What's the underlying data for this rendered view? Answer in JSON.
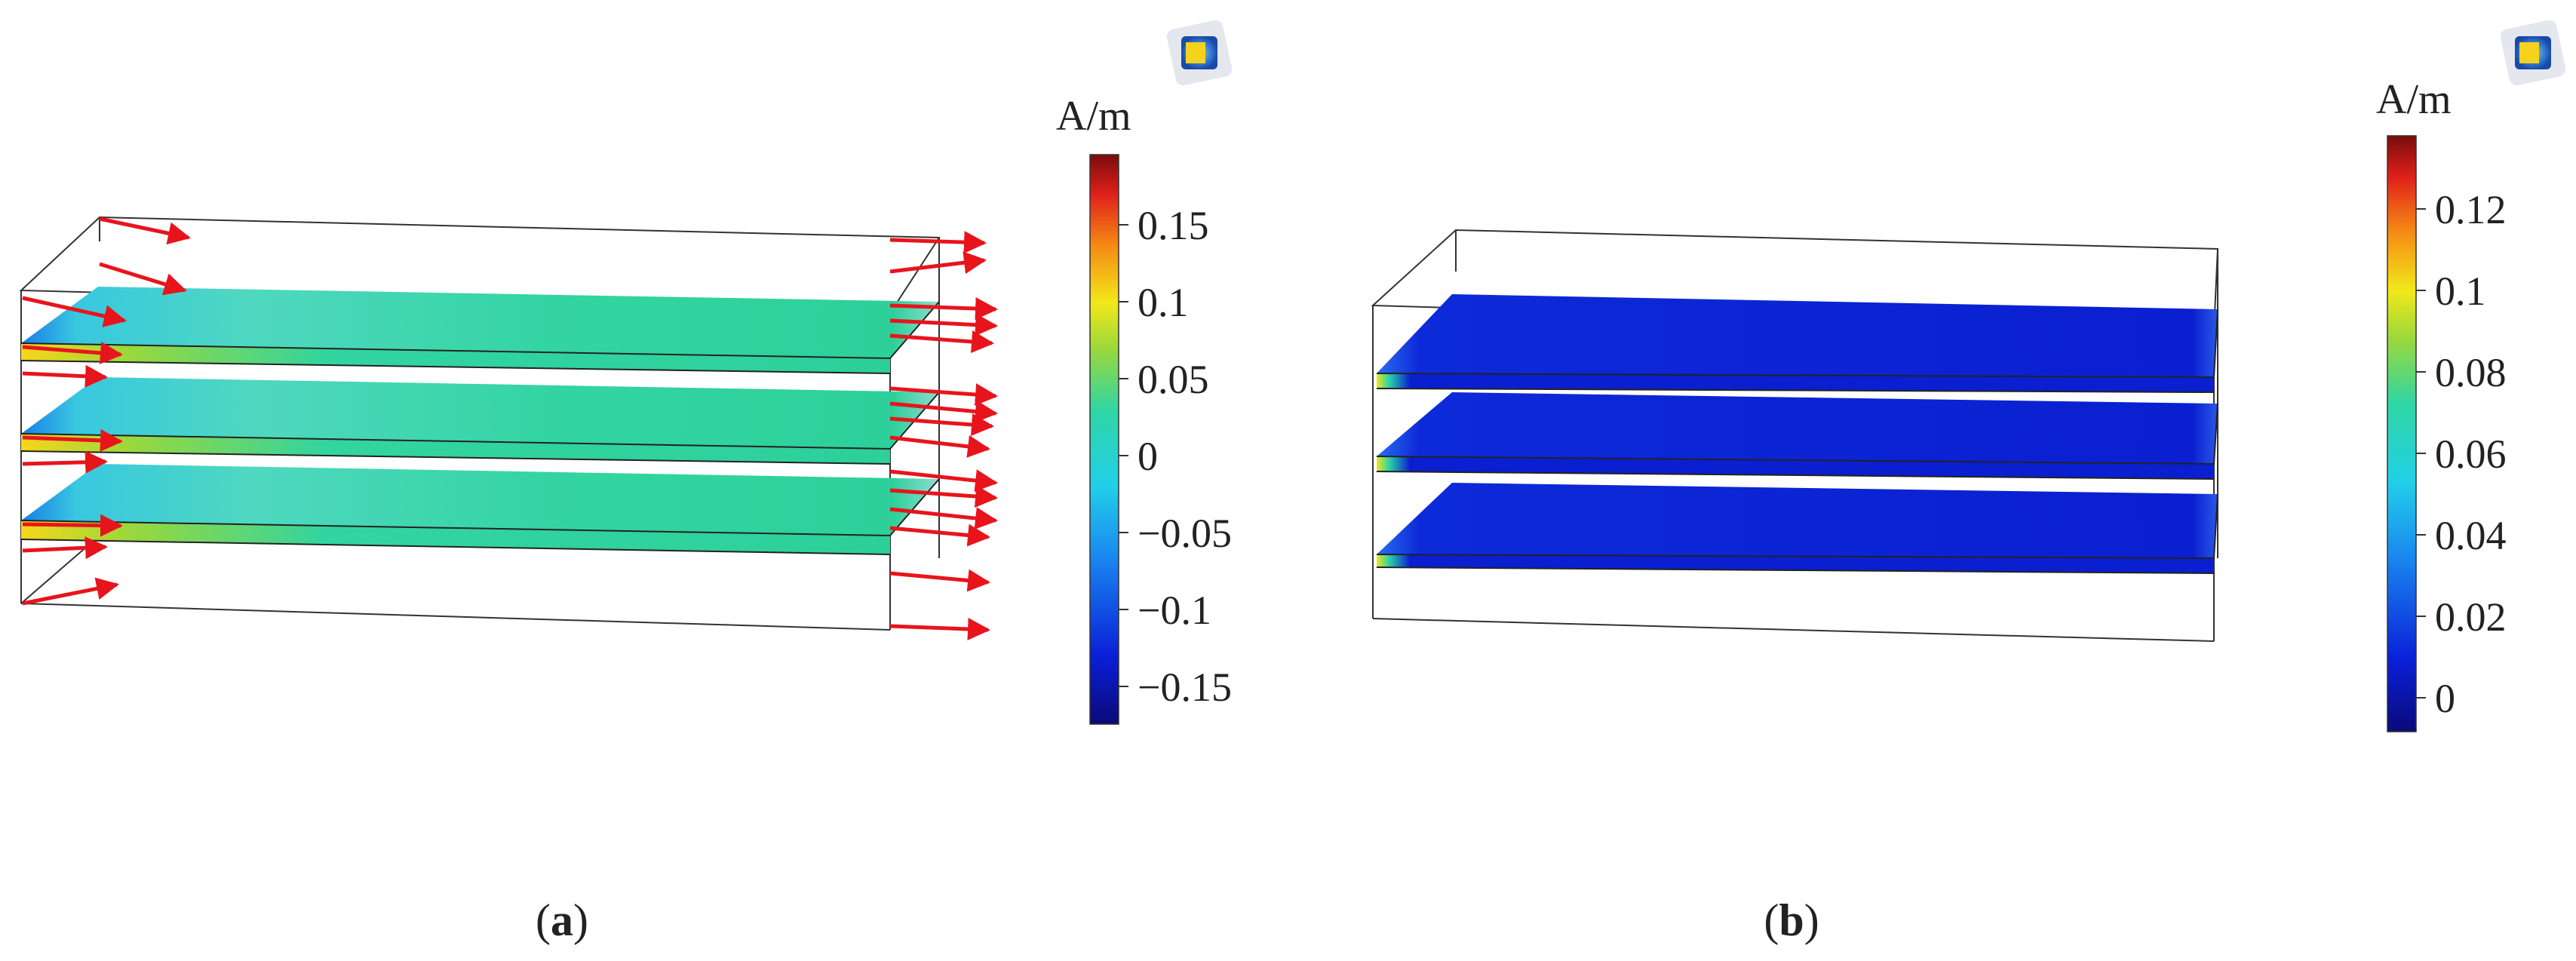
{
  "panels": [
    {
      "id": "a",
      "caption": "(a)",
      "caption_letter": "a",
      "colorbar": {
        "unit": "A/m",
        "ticks": [
          "0.15",
          "0.1",
          "0.05",
          "0",
          "−0.05",
          "−0.1",
          "−0.15"
        ]
      }
    },
    {
      "id": "b",
      "caption": "(b)",
      "caption_letter": "b",
      "colorbar": {
        "unit": "A/m",
        "ticks": [
          "0.12",
          "0.1",
          "0.08",
          "0.06",
          "0.04",
          "0.02",
          "0"
        ]
      }
    }
  ],
  "colors": {
    "arrow": "#e8141c",
    "field_a": "#2fd6a4",
    "field_b": "#0a1fd4",
    "box_edge": "#333333"
  },
  "icons": [
    "app-logo-icon"
  ]
}
